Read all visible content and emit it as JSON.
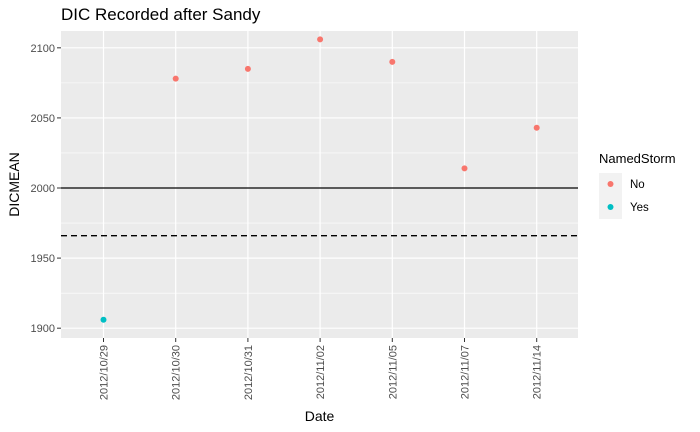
{
  "chart_data": {
    "type": "scatter",
    "title": "DIC Recorded after Sandy",
    "xlabel": "Date",
    "ylabel": "DICMEAN",
    "categories": [
      "2012/10/29",
      "2012/10/30",
      "2012/10/31",
      "2012/11/02",
      "2012/11/05",
      "2012/11/07",
      "2012/11/14"
    ],
    "ylim": [
      1893,
      2112
    ],
    "yticks": [
      1900,
      1950,
      2000,
      2050,
      2100
    ],
    "grid": true,
    "reference_lines": [
      {
        "y": 2000,
        "style": "solid",
        "color": "#000000"
      },
      {
        "y": 1966,
        "style": "dashed",
        "color": "#000000"
      }
    ],
    "legend": {
      "title": "NamedStorm",
      "placement": "right",
      "entries": [
        {
          "label": "No",
          "color": "#F8766D"
        },
        {
          "label": "Yes",
          "color": "#00BFC4"
        }
      ]
    },
    "points": [
      {
        "x": "2012/10/29",
        "y": 1906,
        "group": "Yes"
      },
      {
        "x": "2012/10/30",
        "y": 2078,
        "group": "No"
      },
      {
        "x": "2012/10/31",
        "y": 2085,
        "group": "No"
      },
      {
        "x": "2012/11/02",
        "y": 2106,
        "group": "No"
      },
      {
        "x": "2012/11/05",
        "y": 2090,
        "group": "No"
      },
      {
        "x": "2012/11/07",
        "y": 2014,
        "group": "No"
      },
      {
        "x": "2012/11/14",
        "y": 2043,
        "group": "No"
      }
    ],
    "panel_background": "#EBEBEB",
    "gridline_color": "#FFFFFF"
  }
}
